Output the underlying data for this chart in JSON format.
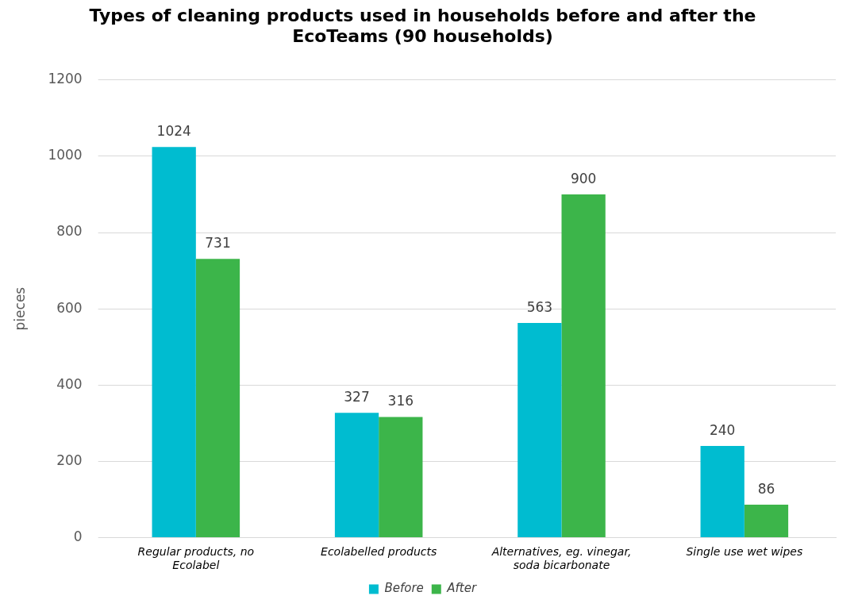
{
  "chart_data": {
    "type": "bar",
    "title": "Types of cleaning products used in households before and after the EcoTeams (90 households)",
    "ylabel": "pieces",
    "categories": [
      "Regular products, no Ecolabel",
      "Ecolabelled products",
      "Alternatives, eg. vinegar, soda bicarbonate",
      "Single use wet wipes"
    ],
    "series": [
      {
        "name": "Before",
        "color": "#00bcd0",
        "values": [
          1024,
          327,
          563,
          240
        ]
      },
      {
        "name": "After",
        "color": "#3cb54a",
        "values": [
          731,
          316,
          900,
          86
        ]
      }
    ],
    "ylim": [
      0,
      1200
    ],
    "yticks": [
      0,
      200,
      400,
      600,
      800,
      1000,
      1200
    ],
    "grid": "y",
    "legend": "bottom",
    "data_labels": true
  }
}
